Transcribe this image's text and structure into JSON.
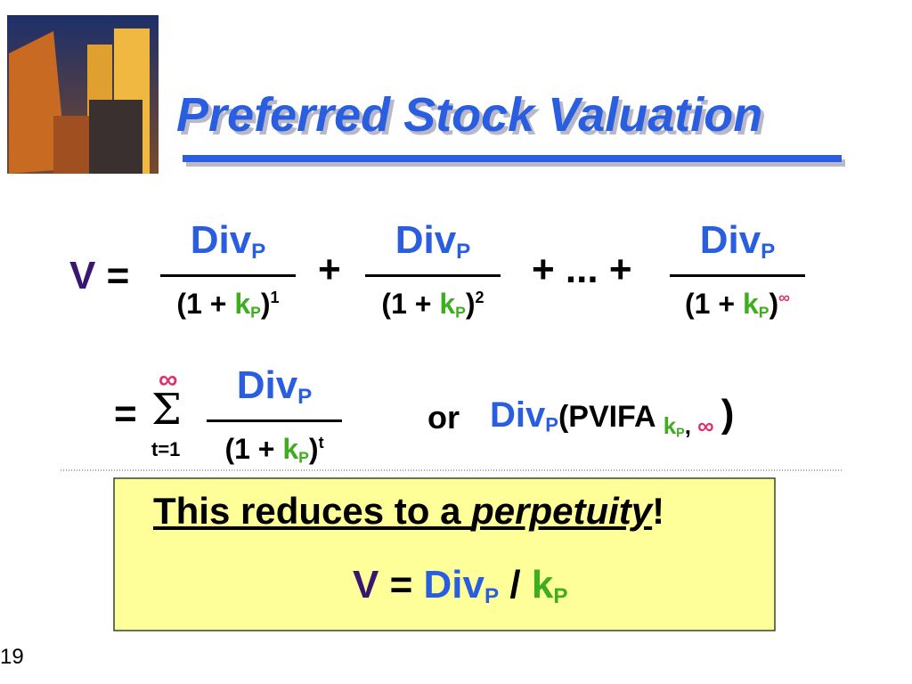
{
  "header": {
    "title": "Preferred Stock Valuation"
  },
  "page_number": "19",
  "formula": {
    "lhs": "V",
    "equals": "=",
    "numerator": "Div",
    "subscript": "P",
    "denominator_open": "(1 + ",
    "rate": "k",
    "denominator_close": ")",
    "exponents": [
      "1",
      "2",
      "∞"
    ],
    "plus": "+",
    "ellipsis": "+ ... +",
    "sigma": "Σ",
    "sum_upper": "∞",
    "sum_lower": "t=1",
    "sum_exponent": "t",
    "or": "or",
    "pvifa_open": "(PVIFA ",
    "comma": ", ",
    "close": ")"
  },
  "callout": {
    "text": "This reduces to a ",
    "emphasis": "perpetuity",
    "end": "!",
    "divide": "/"
  }
}
